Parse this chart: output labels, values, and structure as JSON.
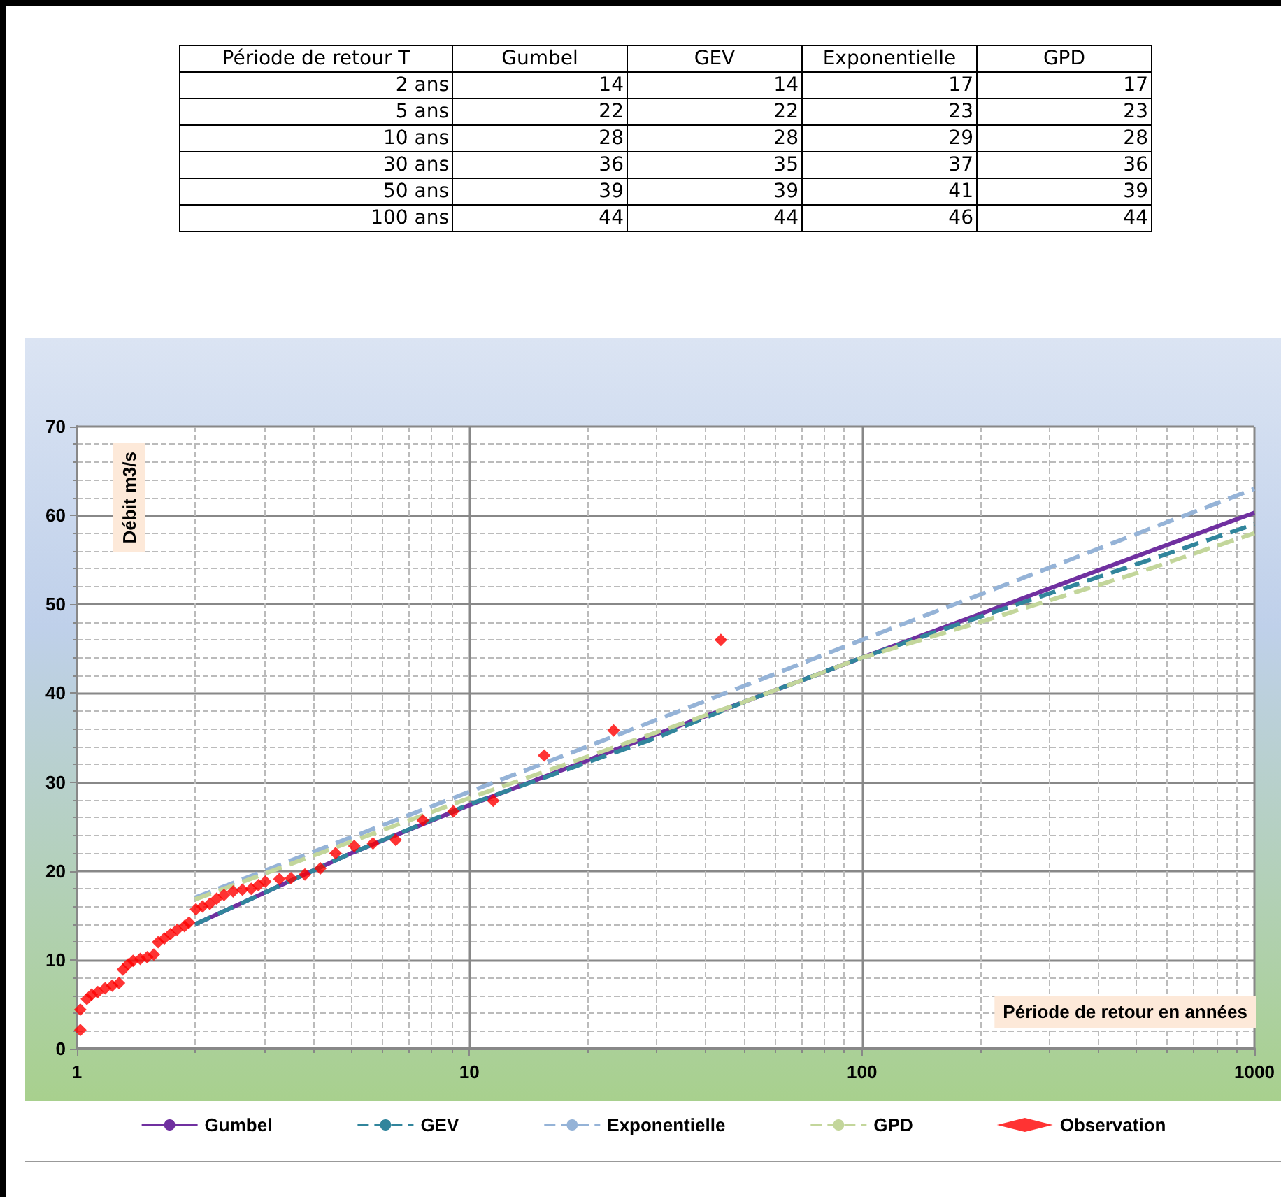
{
  "chart_data": [
    {
      "type": "other",
      "xlabel": "Période de retour T",
      "categories": [
        "2 ans",
        "5 ans",
        "10 ans",
        "30 ans",
        "50 ans",
        "100 ans"
      ],
      "data_labels": true,
      "series": [
        {
          "name": "Gumbel",
          "values": [
            14,
            22,
            28,
            36,
            39,
            44
          ]
        },
        {
          "name": "GEV",
          "values": [
            14,
            22,
            28,
            35,
            39,
            44
          ]
        },
        {
          "name": "Exponentielle",
          "values": [
            17,
            23,
            29,
            37,
            41,
            46
          ]
        },
        {
          "name": "GPD",
          "values": [
            17,
            23,
            28,
            36,
            39,
            44
          ]
        }
      ]
    },
    {
      "type": "line",
      "xlabel": "Période de retour en années",
      "ylabel": "Débit m3/s",
      "log": "x",
      "xlim": [
        1,
        1000
      ],
      "xticks": [
        1,
        10,
        100,
        1000
      ],
      "ylim": [
        0,
        70
      ],
      "yticks": [
        0,
        10,
        20,
        30,
        40,
        50,
        60,
        70
      ],
      "grid": true,
      "legend": "bottom",
      "marker": "none",
      "series": [
        {
          "name": "Gumbel",
          "color": "#7030a0",
          "line_style": "solid",
          "x": [
            2,
            5,
            10,
            30,
            50,
            100,
            200,
            500,
            1000
          ],
          "values": [
            14,
            22,
            27.4,
            35.4,
            39,
            44,
            48.9,
            55.4,
            60.3
          ]
        },
        {
          "name": "GEV",
          "color": "#31859c",
          "line_style": "dashed",
          "x": [
            2,
            5,
            10,
            30,
            50,
            100,
            200,
            500,
            1000
          ],
          "values": [
            14,
            22,
            27.5,
            35,
            39,
            44,
            48.6,
            54.5,
            59
          ]
        },
        {
          "name": "Exponentielle",
          "color": "#95b3d7",
          "line_style": "dashed",
          "x": [
            2,
            5,
            10,
            30,
            50,
            100,
            200,
            500,
            1000
          ],
          "values": [
            17,
            23.8,
            28.9,
            37,
            40.8,
            46,
            51.1,
            57.9,
            63
          ]
        },
        {
          "name": "GPD",
          "color": "#c3d69b",
          "line_style": "dashed",
          "x": [
            2,
            5,
            10,
            30,
            50,
            100,
            200,
            500,
            1000
          ],
          "values": [
            16.8,
            23.3,
            28.2,
            35.6,
            39,
            44,
            48,
            53.5,
            58
          ]
        },
        {
          "name": "Observation",
          "type": "scatter",
          "marker": "diamond",
          "color": "#ff0000",
          "x": [
            1.02,
            1.02,
            1.06,
            1.09,
            1.13,
            1.18,
            1.23,
            1.28,
            1.31,
            1.35,
            1.39,
            1.45,
            1.51,
            1.57,
            1.61,
            1.67,
            1.73,
            1.8,
            1.88,
            1.93,
            2.01,
            2.09,
            2.18,
            2.27,
            2.37,
            2.5,
            2.64,
            2.78,
            2.9,
            3.02,
            3.28,
            3.51,
            3.81,
            4.17,
            4.56,
            5.09,
            5.68,
            6.49,
            7.61,
            9.1,
            11.5,
            15.5,
            23.3,
            43.7
          ],
          "values": [
            2.1,
            4.4,
            5.6,
            6.1,
            6.4,
            6.8,
            7.1,
            7.4,
            8.9,
            9.5,
            9.9,
            10.1,
            10.3,
            10.6,
            12,
            12.4,
            12.9,
            13.4,
            13.8,
            14.2,
            15.7,
            16,
            16.3,
            16.9,
            17.3,
            17.7,
            17.9,
            18,
            18.4,
            18.8,
            19.1,
            19.2,
            19.6,
            20.3,
            22,
            22.8,
            23.1,
            23.5,
            25.7,
            26.7,
            27.9,
            33,
            35.8,
            46
          ]
        }
      ]
    }
  ]
}
